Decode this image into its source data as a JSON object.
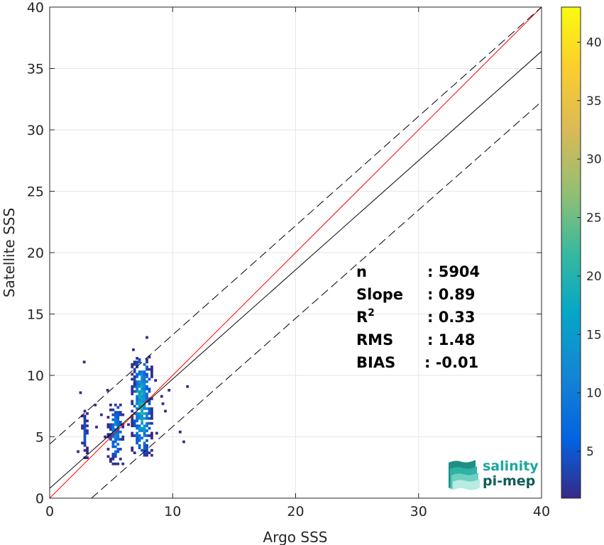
{
  "chart_data": {
    "type": "scatter",
    "subtype": "2d-density-histogram",
    "xlabel": "Argo SSS",
    "ylabel": "Satellite SSS",
    "xlim": [
      0,
      40
    ],
    "ylim": [
      0,
      40
    ],
    "xticks": [
      0,
      10,
      20,
      30,
      40
    ],
    "yticks": [
      0,
      5,
      10,
      15,
      20,
      25,
      30,
      35,
      40
    ],
    "grid": true,
    "colorbar": {
      "range": [
        1,
        43
      ],
      "ticks": [
        5,
        10,
        15,
        20,
        25,
        30,
        35,
        40
      ],
      "colormap": "parula",
      "position": "right"
    },
    "lines": [
      {
        "name": "1:1 line",
        "color": "#ff0000",
        "style": "solid",
        "x": [
          0,
          40
        ],
        "y": [
          0,
          40
        ]
      },
      {
        "name": "regression",
        "color": "#000000",
        "style": "solid",
        "x": [
          0,
          40
        ],
        "y": [
          0.8,
          36.4
        ]
      },
      {
        "name": "upper envelope",
        "color": "#000000",
        "style": "dashed",
        "x": [
          0,
          40
        ],
        "y": [
          4.4,
          40
        ]
      },
      {
        "name": "lower envelope",
        "color": "#000000",
        "style": "dashed",
        "x": [
          3.4,
          40
        ],
        "y": [
          0,
          32.3
        ]
      }
    ],
    "clusters": [
      {
        "x_center": 2.8,
        "x_width": 0.5,
        "y_min": 3.2,
        "y_max": 7.2,
        "peak": 6
      },
      {
        "x_center": 5.3,
        "x_width": 1.3,
        "y_min": 2.7,
        "y_max": 7.7,
        "peak": 14
      },
      {
        "x_center": 7.4,
        "x_width": 1.6,
        "y_min": 3.4,
        "y_max": 11.5,
        "peak": 24
      }
    ],
    "sparse_points": [
      [
        2.7,
        11.0
      ],
      [
        2.4,
        8.5
      ],
      [
        3.6,
        7.5
      ],
      [
        4.6,
        8.7
      ],
      [
        4.1,
        6.7
      ],
      [
        6.7,
        12.0
      ],
      [
        7.0,
        11.3
      ],
      [
        7.8,
        13.0
      ],
      [
        6.8,
        9.2
      ],
      [
        9.6,
        8.7
      ],
      [
        9.1,
        7.6
      ],
      [
        9.0,
        8.2
      ],
      [
        10.5,
        5.3
      ],
      [
        10.8,
        4.5
      ],
      [
        11.1,
        9.0
      ],
      [
        9.3,
        7.0
      ],
      [
        8.6,
        5.2
      ],
      [
        4.4,
        4.9
      ],
      [
        3.7,
        5.7
      ],
      [
        6.3,
        5.9
      ],
      [
        2.2,
        3.7
      ],
      [
        8.5,
        9.5
      ]
    ],
    "stats": [
      {
        "label": "n",
        "value": ": 5904"
      },
      {
        "label": "Slope",
        "value": ": 0.89"
      },
      {
        "label": "R",
        "sup": "2",
        "value": ": 0.33"
      },
      {
        "label": "RMS",
        "value": ": 1.48"
      },
      {
        "label": "BIAS",
        "value": ": -0.01"
      }
    ],
    "colors": {
      "one_to_one": "#ff0000",
      "regression": "#000000",
      "grid": "#e6e6e6",
      "axes": "#262626"
    }
  },
  "logo": {
    "line1": "salinity",
    "line2": "pi-mep",
    "line1_color": "#1aa89b",
    "line2_color": "#0e5e56"
  }
}
